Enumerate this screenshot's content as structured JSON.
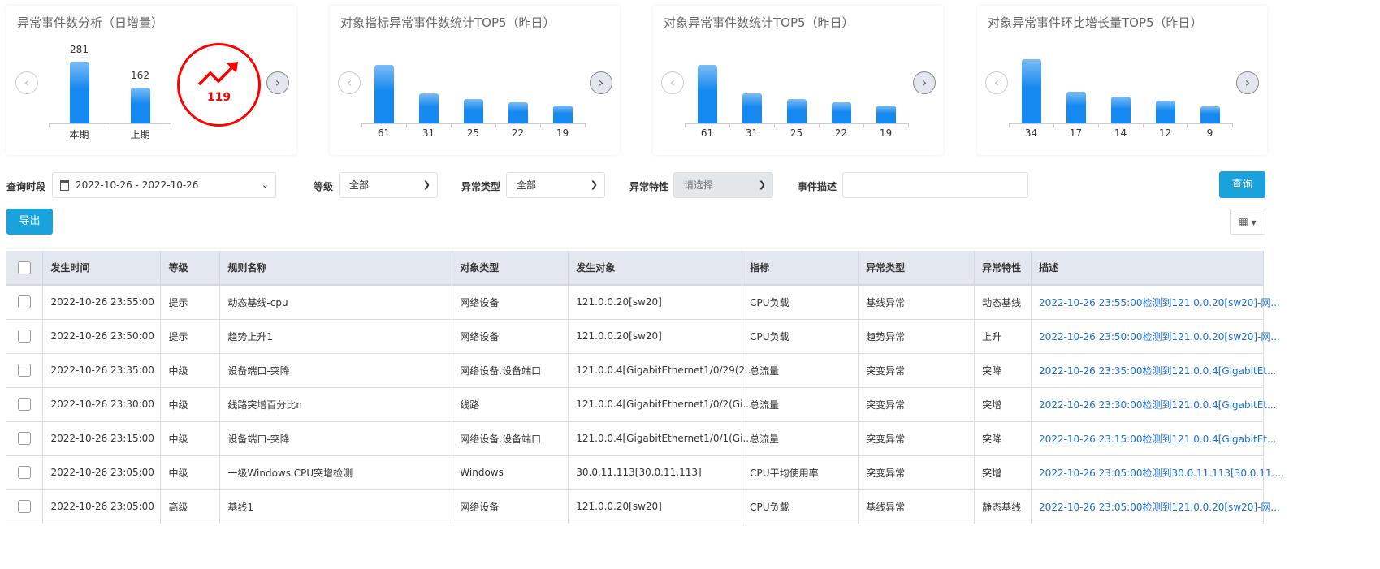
{
  "cards": [
    {
      "title": "异常事件数分析（日增量）",
      "trend_value": "119",
      "trend_icon": "trend-up-icon"
    },
    {
      "title": "对象指标异常事件数统计TOP5（昨日）"
    },
    {
      "title": "对象异常事件数统计TOP5（昨日）"
    },
    {
      "title": "对象异常事件环比增长量TOP5（昨日）"
    }
  ],
  "chart_data": [
    {
      "type": "bar",
      "categories": [
        "本期",
        "上期"
      ],
      "values": [
        281,
        162
      ],
      "value_labels": [
        "281",
        "162"
      ]
    },
    {
      "type": "bar",
      "categories": [
        "61",
        "31",
        "25",
        "22",
        "19"
      ],
      "values": [
        61,
        31,
        25,
        22,
        19
      ]
    },
    {
      "type": "bar",
      "categories": [
        "61",
        "31",
        "25",
        "22",
        "19"
      ],
      "values": [
        61,
        31,
        25,
        22,
        19
      ]
    },
    {
      "type": "bar",
      "categories": [
        "34",
        "17",
        "14",
        "12",
        "9"
      ],
      "values": [
        34,
        17,
        14,
        12,
        9
      ]
    }
  ],
  "filters": {
    "period_label": "查询时段",
    "period_value": "2022-10-26 - 2022-10-26",
    "level_label": "等级",
    "level_value": "全部",
    "type_label": "异常类型",
    "type_value": "全部",
    "trait_label": "异常特性",
    "trait_placeholder": "请选择",
    "desc_label": "事件描述",
    "desc_value": "",
    "query": "查询",
    "export": "导出"
  },
  "colors": {
    "accent": "#1aa2dc",
    "bar": "#1589ef",
    "trend": "#ff0000",
    "link": "#1a6fd6"
  },
  "table": {
    "headers": [
      "发生时间",
      "等级",
      "规则名称",
      "对象类型",
      "发生对象",
      "指标",
      "异常类型",
      "异常特性",
      "描述"
    ],
    "rows": [
      [
        "2022-10-26 23:55:00",
        "提示",
        "动态基线-cpu",
        "网络设备",
        "121.0.0.20[sw20]",
        "CPU负载",
        "基线异常",
        "动态基线",
        "2022-10-26 23:55:00检测到121.0.0.20[sw20]-网..."
      ],
      [
        "2022-10-26 23:50:00",
        "提示",
        "趋势上升1",
        "网络设备",
        "121.0.0.20[sw20]",
        "CPU负载",
        "趋势异常",
        "上升",
        "2022-10-26 23:50:00检测到121.0.0.20[sw20]-网..."
      ],
      [
        "2022-10-26 23:35:00",
        "中级",
        "设备端口-突降",
        "网络设备.设备端口",
        "121.0.0.4[GigabitEthernet1/0/29(2...",
        "总流量",
        "突变异常",
        "突降",
        "2022-10-26 23:35:00检测到121.0.0.4[GigabitEt..."
      ],
      [
        "2022-10-26 23:30:00",
        "中级",
        "线路突增百分比n",
        "线路",
        "121.0.0.4[GigabitEthernet1/0/2(Gi...",
        "总流量",
        "突变异常",
        "突增",
        "2022-10-26 23:30:00检测到121.0.0.4[GigabitEt..."
      ],
      [
        "2022-10-26 23:15:00",
        "中级",
        "设备端口-突降",
        "网络设备.设备端口",
        "121.0.0.4[GigabitEthernet1/0/1(Gi...",
        "总流量",
        "突变异常",
        "突降",
        "2022-10-26 23:15:00检测到121.0.0.4[GigabitEt..."
      ],
      [
        "2022-10-26 23:05:00",
        "中级",
        "一级Windows CPU突增检测",
        "Windows",
        "30.0.11.113[30.0.11.113]",
        "CPU平均使用率",
        "突变异常",
        "突增",
        "2022-10-26 23:05:00检测到30.0.11.113[30.0.11...."
      ],
      [
        "2022-10-26 23:05:00",
        "高级",
        "基线1",
        "网络设备",
        "121.0.0.20[sw20]",
        "CPU负载",
        "基线异常",
        "静态基线",
        "2022-10-26 23:05:00检测到121.0.0.20[sw20]-网..."
      ]
    ]
  }
}
